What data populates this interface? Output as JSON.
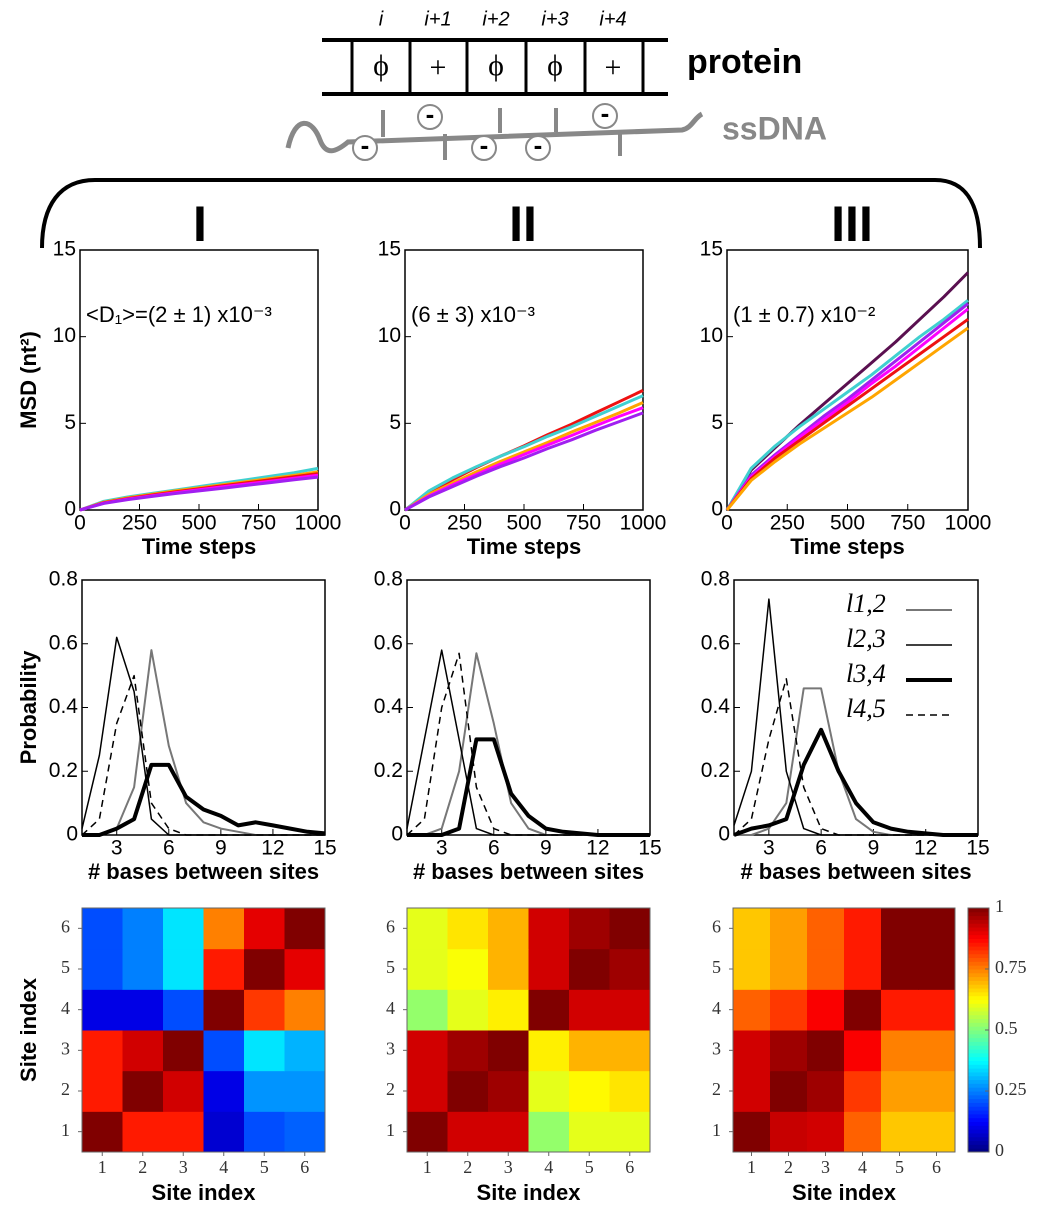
{
  "diagram": {
    "positions": [
      "i",
      "i+1",
      "i+2",
      "i+3",
      "i+4"
    ],
    "residues": [
      "ϕ",
      "+",
      "ϕ",
      "ϕ",
      "+"
    ],
    "protein": "protein",
    "ssdna": "ssDNA",
    "charge": "-"
  },
  "panels": [
    "I",
    "II",
    "III"
  ],
  "chart_data": [
    {
      "type": "line",
      "ylabel": "MSD (nt²)",
      "xlabel": "Time steps",
      "annotation": "<D₁>=(2 ± 1) x10⁻³",
      "x": [
        0,
        100,
        200,
        300,
        400,
        500,
        600,
        700,
        800,
        900,
        1000
      ],
      "xlim": [
        0,
        1000
      ],
      "xticks": [
        0,
        250,
        500,
        750,
        1000
      ],
      "ylim": [
        0,
        15
      ],
      "yticks": [
        0,
        5,
        10,
        15
      ],
      "series": [
        {
          "color": "#40d0d0",
          "values": [
            0,
            0.5,
            0.75,
            0.95,
            1.15,
            1.35,
            1.55,
            1.75,
            1.95,
            2.15,
            2.4
          ]
        },
        {
          "color": "#ffa500",
          "values": [
            0,
            0.45,
            0.7,
            0.9,
            1.1,
            1.28,
            1.46,
            1.64,
            1.82,
            2.0,
            2.2
          ]
        },
        {
          "color": "#ee1111",
          "values": [
            0,
            0.42,
            0.66,
            0.86,
            1.05,
            1.22,
            1.4,
            1.57,
            1.74,
            1.92,
            2.1
          ]
        },
        {
          "color": "#ff00ff",
          "values": [
            0,
            0.4,
            0.63,
            0.82,
            1.0,
            1.17,
            1.34,
            1.5,
            1.66,
            1.83,
            2.0
          ]
        },
        {
          "color": "#a020f0",
          "values": [
            0,
            0.38,
            0.6,
            0.78,
            0.95,
            1.1,
            1.26,
            1.42,
            1.58,
            1.74,
            1.9
          ]
        }
      ]
    },
    {
      "type": "line",
      "xlabel": "Time steps",
      "annotation": "(6 ± 3) x10⁻³",
      "x": [
        0,
        100,
        200,
        300,
        400,
        500,
        600,
        700,
        800,
        900,
        1000
      ],
      "xlim": [
        0,
        1000
      ],
      "xticks": [
        0,
        250,
        500,
        750,
        1000
      ],
      "ylim": [
        0,
        15
      ],
      "yticks": [
        0,
        5,
        10,
        15
      ],
      "series": [
        {
          "color": "#ee1111",
          "values": [
            0,
            1.0,
            1.75,
            2.45,
            3.1,
            3.7,
            4.35,
            4.95,
            5.6,
            6.25,
            6.9
          ]
        },
        {
          "color": "#40d0d0",
          "values": [
            0,
            1.1,
            1.85,
            2.5,
            3.1,
            3.65,
            4.25,
            4.8,
            5.4,
            6.0,
            6.6
          ]
        },
        {
          "color": "#ffa500",
          "values": [
            0,
            0.9,
            1.55,
            2.2,
            2.8,
            3.35,
            3.9,
            4.5,
            5.05,
            5.6,
            6.2
          ]
        },
        {
          "color": "#ff00ff",
          "values": [
            0,
            0.8,
            1.45,
            2.05,
            2.65,
            3.2,
            3.75,
            4.3,
            4.85,
            5.4,
            5.9
          ]
        },
        {
          "color": "#a020f0",
          "values": [
            0,
            0.75,
            1.35,
            1.95,
            2.5,
            3.0,
            3.55,
            4.05,
            4.6,
            5.1,
            5.6
          ]
        }
      ]
    },
    {
      "type": "line",
      "xlabel": "Time steps",
      "annotation": "(1 ± 0.7) x10⁻²",
      "x": [
        0,
        100,
        200,
        300,
        400,
        500,
        600,
        700,
        800,
        900,
        1000
      ],
      "xlim": [
        0,
        1000
      ],
      "xticks": [
        0,
        250,
        500,
        750,
        1000
      ],
      "ylim": [
        0,
        15
      ],
      "yticks": [
        0,
        5,
        10,
        15
      ],
      "series": [
        {
          "color": "#5a1050",
          "values": [
            0,
            2.3,
            3.6,
            4.9,
            6.1,
            7.3,
            8.5,
            9.7,
            11.0,
            12.3,
            13.7
          ]
        },
        {
          "color": "#40d0d0",
          "values": [
            0,
            2.4,
            3.7,
            4.8,
            5.8,
            6.8,
            7.8,
            8.9,
            10.0,
            11.0,
            12.1
          ]
        },
        {
          "color": "#a020f0",
          "values": [
            0,
            2.0,
            3.2,
            4.3,
            5.4,
            6.4,
            7.5,
            8.6,
            9.7,
            10.8,
            11.9
          ]
        },
        {
          "color": "#ff00ff",
          "values": [
            0,
            1.9,
            3.1,
            4.2,
            5.2,
            6.2,
            7.3,
            8.3,
            9.4,
            10.5,
            11.6
          ]
        },
        {
          "color": "#ee1111",
          "values": [
            0,
            1.8,
            3.0,
            4.0,
            5.0,
            6.0,
            7.0,
            8.0,
            9.0,
            10.0,
            11.0
          ]
        },
        {
          "color": "#ffa500",
          "values": [
            0,
            1.7,
            2.8,
            3.8,
            4.7,
            5.6,
            6.5,
            7.5,
            8.5,
            9.5,
            10.5
          ]
        }
      ]
    },
    {
      "type": "line",
      "ylabel": "Probability",
      "xlabel": "# bases between sites",
      "x": [
        1,
        2,
        3,
        4,
        5,
        6,
        7,
        8,
        9,
        10,
        11,
        12,
        13,
        14,
        15
      ],
      "xlim": [
        1,
        15
      ],
      "xticks": [
        3,
        6,
        9,
        12,
        15
      ],
      "ylim": [
        0,
        0.8
      ],
      "yticks": [
        0,
        0.2,
        0.4,
        0.6,
        0.8
      ],
      "series": [
        {
          "color": "#777777",
          "width": 2,
          "values": [
            0,
            0,
            0.02,
            0.15,
            0.58,
            0.28,
            0.1,
            0.04,
            0.02,
            0.01,
            0,
            0,
            0,
            0,
            0
          ]
        },
        {
          "color": "#000000",
          "width": 1.5,
          "values": [
            0.02,
            0.25,
            0.62,
            0.45,
            0.05,
            0,
            0,
            0,
            0,
            0,
            0,
            0,
            0,
            0,
            0
          ]
        },
        {
          "color": "#000000",
          "width": 4,
          "values": [
            0,
            0,
            0.02,
            0.05,
            0.22,
            0.22,
            0.12,
            0.08,
            0.06,
            0.03,
            0.04,
            0.03,
            0.02,
            0.01,
            0.005
          ]
        },
        {
          "color": "#000000",
          "width": 1.5,
          "dash": true,
          "values": [
            0,
            0.05,
            0.35,
            0.5,
            0.1,
            0.02,
            0,
            0,
            0,
            0,
            0,
            0,
            0,
            0,
            0
          ]
        }
      ]
    },
    {
      "type": "line",
      "xlabel": "# bases between sites",
      "x": [
        1,
        2,
        3,
        4,
        5,
        6,
        7,
        8,
        9,
        10,
        11,
        12,
        13,
        14,
        15
      ],
      "xlim": [
        1,
        15
      ],
      "xticks": [
        3,
        6,
        9,
        12,
        15
      ],
      "ylim": [
        0,
        0.8
      ],
      "yticks": [
        0,
        0.2,
        0.4,
        0.6,
        0.8
      ],
      "series": [
        {
          "color": "#777777",
          "width": 2,
          "values": [
            0,
            0,
            0.02,
            0.2,
            0.57,
            0.35,
            0.1,
            0.02,
            0,
            0,
            0,
            0,
            0,
            0,
            0
          ]
        },
        {
          "color": "#000000",
          "width": 1.5,
          "values": [
            0.02,
            0.3,
            0.58,
            0.3,
            0.02,
            0,
            0,
            0,
            0,
            0,
            0,
            0,
            0,
            0,
            0
          ]
        },
        {
          "color": "#000000",
          "width": 4,
          "values": [
            0,
            0,
            0,
            0.02,
            0.3,
            0.3,
            0.13,
            0.06,
            0.02,
            0.01,
            0.005,
            0,
            0,
            0,
            0
          ]
        },
        {
          "color": "#000000",
          "width": 1.5,
          "dash": true,
          "values": [
            0,
            0.05,
            0.4,
            0.57,
            0.15,
            0.02,
            0,
            0,
            0,
            0,
            0,
            0,
            0,
            0,
            0
          ]
        }
      ]
    },
    {
      "type": "line",
      "xlabel": "# bases between sites",
      "legend": "upper right",
      "x": [
        1,
        2,
        3,
        4,
        5,
        6,
        7,
        8,
        9,
        10,
        11,
        12,
        13,
        14,
        15
      ],
      "xlim": [
        1,
        15
      ],
      "xticks": [
        3,
        6,
        9,
        12,
        15
      ],
      "ylim": [
        0,
        0.8
      ],
      "yticks": [
        0,
        0.2,
        0.4,
        0.6,
        0.8
      ],
      "series": [
        {
          "name": "l1,2",
          "color": "#777777",
          "width": 2,
          "values": [
            0,
            0,
            0.02,
            0.1,
            0.46,
            0.46,
            0.2,
            0.05,
            0.01,
            0,
            0,
            0,
            0,
            0,
            0
          ]
        },
        {
          "name": "l2,3",
          "color": "#000000",
          "width": 1.5,
          "values": [
            0.03,
            0.2,
            0.74,
            0.2,
            0.02,
            0,
            0,
            0,
            0,
            0,
            0,
            0,
            0,
            0,
            0
          ]
        },
        {
          "name": "l3,4",
          "color": "#000000",
          "width": 4,
          "values": [
            0,
            0.02,
            0.03,
            0.05,
            0.22,
            0.33,
            0.2,
            0.1,
            0.04,
            0.02,
            0.01,
            0.005,
            0,
            0,
            0
          ]
        },
        {
          "name": "l4,5",
          "color": "#000000",
          "width": 1.5,
          "dash": true,
          "values": [
            0,
            0.05,
            0.3,
            0.49,
            0.15,
            0.02,
            0,
            0,
            0,
            0,
            0,
            0,
            0,
            0,
            0
          ]
        }
      ]
    },
    {
      "type": "heatmap",
      "ylabel": "Site index",
      "xlabel": "Site index",
      "colormap": "jet",
      "zlim": [
        0,
        1
      ],
      "xticks": [
        1,
        2,
        3,
        4,
        5,
        6
      ],
      "yticks": [
        1,
        2,
        3,
        4,
        5,
        6
      ],
      "xlim": [
        0.5,
        6.5
      ],
      "ylim": [
        0.5,
        6.5
      ],
      "z": [
        [
          1,
          0.85,
          0.85,
          0.08,
          0.2,
          0.22
        ],
        [
          0.85,
          1,
          0.92,
          0.1,
          0.27,
          0.27
        ],
        [
          0.85,
          0.92,
          1,
          0.2,
          0.35,
          0.3
        ],
        [
          0.1,
          0.1,
          0.2,
          1,
          0.82,
          0.75
        ],
        [
          0.2,
          0.25,
          0.35,
          0.85,
          1,
          0.9
        ],
        [
          0.2,
          0.25,
          0.35,
          0.75,
          0.9,
          1
        ]
      ]
    },
    {
      "type": "heatmap",
      "xlabel": "Site index",
      "colormap": "jet",
      "zlim": [
        0,
        1
      ],
      "xticks": [
        1,
        2,
        3,
        4,
        5,
        6
      ],
      "yticks": [
        1,
        2,
        3,
        4,
        5,
        6
      ],
      "xlim": [
        0.5,
        6.5
      ],
      "ylim": [
        0.5,
        6.5
      ],
      "z": [
        [
          1,
          0.92,
          0.92,
          0.52,
          0.6,
          0.6
        ],
        [
          0.92,
          1,
          0.97,
          0.6,
          0.63,
          0.65
        ],
        [
          0.92,
          0.97,
          1,
          0.64,
          0.7,
          0.7
        ],
        [
          0.52,
          0.6,
          0.64,
          1,
          0.92,
          0.92
        ],
        [
          0.6,
          0.62,
          0.7,
          0.92,
          1,
          0.97
        ],
        [
          0.6,
          0.65,
          0.7,
          0.92,
          0.97,
          1
        ]
      ]
    },
    {
      "type": "heatmap",
      "xlabel": "Site index",
      "colormap": "jet",
      "zlim": [
        0,
        1
      ],
      "colorbar": {
        "ticks": [
          0,
          0.25,
          0.5,
          0.75,
          1
        ]
      },
      "xticks": [
        1,
        2,
        3,
        4,
        5,
        6
      ],
      "yticks": [
        1,
        2,
        3,
        4,
        5,
        6
      ],
      "xlim": [
        0.5,
        6.5
      ],
      "ylim": [
        0.5,
        6.5
      ],
      "z": [
        [
          1,
          0.93,
          0.92,
          0.78,
          0.68,
          0.68
        ],
        [
          0.92,
          1,
          0.97,
          0.82,
          0.72,
          0.72
        ],
        [
          0.92,
          0.97,
          1,
          0.88,
          0.75,
          0.75
        ],
        [
          0.78,
          0.82,
          0.88,
          1,
          0.85,
          0.85
        ],
        [
          0.68,
          0.72,
          0.78,
          0.85,
          1,
          1
        ],
        [
          0.68,
          0.72,
          0.78,
          0.85,
          1,
          1
        ]
      ]
    }
  ]
}
